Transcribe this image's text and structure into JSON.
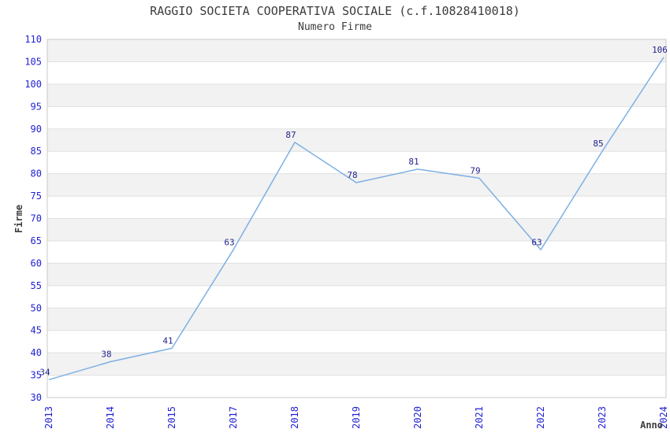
{
  "chart_data": {
    "type": "line",
    "title": "RAGGIO SOCIETA COOPERATIVA SOCIALE (c.f.10828410018)",
    "subtitle": "Numero Firme",
    "xlabel": "Anno",
    "ylabel": "Firme",
    "categories": [
      "2013",
      "2014",
      "2015",
      "2017",
      "2018",
      "2019",
      "2020",
      "2021",
      "2022",
      "2023",
      "2024"
    ],
    "values": [
      34,
      38,
      41,
      63,
      87,
      78,
      81,
      79,
      63,
      85,
      106
    ],
    "ylim": [
      30,
      110
    ],
    "ytick_step": 5,
    "grid": true,
    "legend_position": "none",
    "band_pattern": "alternating-5-unit-horizontal-bands",
    "colors": {
      "line": "#7eb0e4",
      "tick_label": "#2222d4",
      "data_label": "#23238e",
      "axis_label": "#3c3c3c",
      "title_text": "#3c3c3c",
      "band_fill": "#f2f2f2",
      "grid_line": "#e0e0e0",
      "plot_border": "#c8c8c8",
      "background": "#ffffff"
    }
  }
}
